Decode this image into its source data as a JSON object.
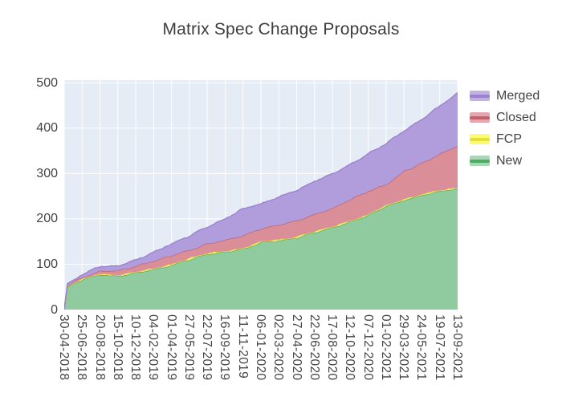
{
  "title": "Matrix Spec Change Proposals",
  "axes": {
    "y_ticks": [
      "0",
      "100",
      "200",
      "300",
      "400",
      "500"
    ],
    "x_ticks": [
      "30-04-2018",
      "25-06-2018",
      "20-08-2018",
      "15-10-2018",
      "10-12-2018",
      "04-02-2019",
      "01-04-2019",
      "27-05-2019",
      "22-07-2019",
      "16-09-2019",
      "11-11-2019",
      "06-01-2020",
      "02-03-2020",
      "27-04-2020",
      "22-06-2020",
      "17-08-2020",
      "12-10-2020",
      "07-12-2020",
      "01-02-2021",
      "29-03-2021",
      "24-05-2021",
      "19-07-2021",
      "13-09-2021"
    ]
  },
  "legend": {
    "entries": [
      {
        "label": "Merged",
        "series": "Merged"
      },
      {
        "label": "Closed",
        "series": "Closed"
      },
      {
        "label": "FCP",
        "series": "FCP"
      },
      {
        "label": "New",
        "series": "New"
      }
    ]
  },
  "colors": {
    "plot_bg": "#e5ecf6",
    "grid": "#ffffff",
    "tick_text": "#444444",
    "title_text": "#3d3d3d"
  },
  "chart_data": {
    "type": "area",
    "stacked": true,
    "title": "Matrix Spec Change Proposals",
    "xlabel": "",
    "ylabel": "",
    "ylim": [
      0,
      500
    ],
    "y_ticks": [
      0,
      100,
      200,
      300,
      400,
      500
    ],
    "grid": true,
    "legend_position": "right",
    "x_tick_labels": [
      "30-04-2018",
      "25-06-2018",
      "20-08-2018",
      "15-10-2018",
      "10-12-2018",
      "04-02-2019",
      "01-04-2019",
      "27-05-2019",
      "22-07-2019",
      "16-09-2019",
      "11-11-2019",
      "06-01-2020",
      "02-03-2020",
      "27-04-2020",
      "22-06-2020",
      "17-08-2020",
      "12-10-2020",
      "07-12-2020",
      "01-02-2021",
      "29-03-2021",
      "24-05-2021",
      "19-07-2021",
      "13-09-2021"
    ],
    "x_days": [
      0,
      10,
      56,
      112,
      168,
      224,
      280,
      336,
      392,
      448,
      504,
      560,
      616,
      672,
      728,
      784,
      840,
      896,
      952,
      1008,
      1064,
      1120,
      1176,
      1232
    ],
    "x_tick_interval_days": 56,
    "x_total_days": 1232,
    "series": [
      {
        "name": "New",
        "line": "#49ae62",
        "fill": "#8fcb9f",
        "legend_fill": "#a9d7b6",
        "values": [
          0,
          50,
          66,
          77,
          74,
          81,
          89,
          97,
          111,
          122,
          127,
          133,
          148,
          152,
          158,
          170,
          181,
          193,
          208,
          228,
          241,
          252,
          261,
          266
        ]
      },
      {
        "name": "FCP",
        "line": "#e4e03a",
        "fill": "#f4f07c",
        "legend_fill": "#fcfc72",
        "values": [
          0,
          1,
          1,
          1,
          2,
          2,
          2,
          2,
          2,
          2,
          2,
          2,
          2,
          2,
          2,
          2,
          2,
          2,
          2,
          2,
          2,
          2,
          2,
          2
        ]
      },
      {
        "name": "Closed",
        "line": "#c4606c",
        "fill": "#d98e98",
        "legend_fill": "#e3a7ae",
        "values": [
          0,
          2,
          4,
          7,
          10,
          13,
          16,
          20,
          18,
          21,
          24,
          28,
          28,
          33,
          36,
          38,
          40,
          48,
          51,
          46,
          62,
          69,
          80,
          93
        ]
      },
      {
        "name": "Merged",
        "line": "#9c82d2",
        "fill": "#b19ddb",
        "legend_fill": "#c2b1e3",
        "values": [
          0,
          4,
          6,
          10,
          10,
          13,
          19,
          26,
          31,
          37,
          47,
          59,
          55,
          61,
          67,
          73,
          76,
          77,
          82,
          90,
          89,
          96,
          106,
          117
        ]
      }
    ]
  }
}
